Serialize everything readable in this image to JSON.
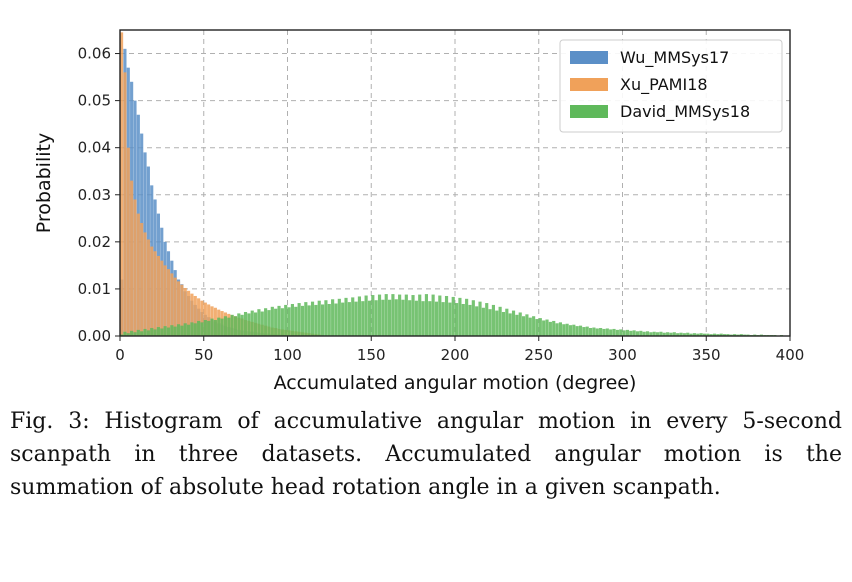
{
  "chart_data": {
    "type": "bar",
    "title": "",
    "xlabel": "Accumulated angular motion (degree)",
    "ylabel": "Probability",
    "xlim": [
      0,
      400
    ],
    "ylim": [
      0,
      0.065
    ],
    "xticks": [
      "0",
      "50",
      "100",
      "150",
      "200",
      "250",
      "300",
      "350",
      "400"
    ],
    "yticks": [
      "0.00",
      "0.01",
      "0.02",
      "0.03",
      "0.04",
      "0.05",
      "0.06"
    ],
    "grid": true,
    "legend_position": "top-right",
    "bin_width": 2,
    "series": [
      {
        "name": "Wu_MMSys17",
        "color": "#5b8fc7",
        "x": [
          0,
          2,
          4,
          6,
          8,
          10,
          12,
          14,
          16,
          18,
          20,
          22,
          24,
          26,
          28,
          30,
          32,
          34,
          36,
          38,
          40,
          42,
          44,
          46,
          48,
          50,
          52,
          54,
          56,
          58,
          60,
          62,
          64,
          66,
          68,
          70,
          72,
          74,
          76,
          78,
          80,
          82,
          84,
          86,
          88,
          90,
          92,
          94,
          96,
          98
        ],
        "values": [
          0.012,
          0.061,
          0.057,
          0.054,
          0.05,
          0.047,
          0.043,
          0.039,
          0.036,
          0.032,
          0.029,
          0.026,
          0.023,
          0.02,
          0.018,
          0.016,
          0.014,
          0.012,
          0.011,
          0.0095,
          0.0085,
          0.0075,
          0.0066,
          0.0058,
          0.0051,
          0.0045,
          0.004,
          0.0035,
          0.0031,
          0.0027,
          0.0024,
          0.0021,
          0.0019,
          0.0017,
          0.0015,
          0.0013,
          0.0012,
          0.0011,
          0.001,
          0.0009,
          0.0008,
          0.0007,
          0.0006,
          0.0005,
          0.0005,
          0.0004,
          0.0004,
          0.0003,
          0.0003,
          0.0002
        ]
      },
      {
        "name": "Xu_PAMI18",
        "color": "#f0a15a",
        "x": [
          0,
          2,
          4,
          6,
          8,
          10,
          12,
          14,
          16,
          18,
          20,
          22,
          24,
          26,
          28,
          30,
          32,
          34,
          36,
          38,
          40,
          42,
          44,
          46,
          48,
          50,
          52,
          54,
          56,
          58,
          60,
          62,
          64,
          66,
          68,
          70,
          72,
          74,
          76,
          78,
          80,
          82,
          84,
          86,
          88,
          90,
          92,
          94,
          96,
          98,
          100,
          102,
          104,
          106,
          108,
          110,
          112,
          114,
          116,
          118
        ],
        "values": [
          0.0645,
          0.056,
          0.04,
          0.033,
          0.029,
          0.026,
          0.024,
          0.022,
          0.0205,
          0.019,
          0.018,
          0.017,
          0.016,
          0.015,
          0.0142,
          0.0133,
          0.0124,
          0.0116,
          0.0109,
          0.0102,
          0.0096,
          0.009,
          0.0085,
          0.008,
          0.0075,
          0.0071,
          0.0067,
          0.0063,
          0.006,
          0.0056,
          0.0053,
          0.005,
          0.0047,
          0.0044,
          0.0042,
          0.0039,
          0.0037,
          0.0034,
          0.0032,
          0.003,
          0.0028,
          0.0026,
          0.0024,
          0.0022,
          0.002,
          0.0018,
          0.0017,
          0.0015,
          0.0014,
          0.0013,
          0.0012,
          0.0011,
          0.001,
          0.0009,
          0.0008,
          0.0007,
          0.0006,
          0.0005,
          0.0004,
          0.0003
        ]
      },
      {
        "name": "David_MMSys18",
        "color": "#5fb95b",
        "x": [
          0,
          2,
          4,
          6,
          8,
          10,
          12,
          14,
          16,
          18,
          20,
          22,
          24,
          26,
          28,
          30,
          32,
          34,
          36,
          38,
          40,
          42,
          44,
          46,
          48,
          50,
          52,
          54,
          56,
          58,
          60,
          62,
          64,
          66,
          68,
          70,
          72,
          74,
          76,
          78,
          80,
          82,
          84,
          86,
          88,
          90,
          92,
          94,
          96,
          98,
          100,
          102,
          104,
          106,
          108,
          110,
          112,
          114,
          116,
          118,
          120,
          122,
          124,
          126,
          128,
          130,
          132,
          134,
          136,
          138,
          140,
          142,
          144,
          146,
          148,
          150,
          152,
          154,
          156,
          158,
          160,
          162,
          164,
          166,
          168,
          170,
          172,
          174,
          176,
          178,
          180,
          182,
          184,
          186,
          188,
          190,
          192,
          194,
          196,
          198,
          200,
          202,
          204,
          206,
          208,
          210,
          212,
          214,
          216,
          218,
          220,
          222,
          224,
          226,
          228,
          230,
          232,
          234,
          236,
          238,
          240,
          242,
          244,
          246,
          248,
          250,
          252,
          254,
          256,
          258,
          260,
          262,
          264,
          266,
          268,
          270,
          272,
          274,
          276,
          278,
          280,
          282,
          284,
          286,
          288,
          290,
          292,
          294,
          296,
          298,
          300,
          302,
          304,
          306,
          308,
          310,
          312,
          314,
          316,
          318,
          320,
          322,
          324,
          326,
          328,
          330,
          332,
          334,
          336,
          338,
          340,
          342,
          344,
          346,
          348,
          350,
          352,
          354,
          356,
          358,
          360,
          362,
          364,
          366,
          368,
          370,
          372,
          374,
          376,
          378,
          380,
          382,
          384,
          386,
          388,
          390,
          392,
          394,
          396,
          398
        ],
        "values": [
          0.0003,
          0.0009,
          0.0006,
          0.0011,
          0.0008,
          0.0013,
          0.001,
          0.0015,
          0.0012,
          0.0017,
          0.0014,
          0.0019,
          0.0016,
          0.0021,
          0.0018,
          0.0023,
          0.002,
          0.0025,
          0.0022,
          0.0027,
          0.0024,
          0.0029,
          0.0027,
          0.0032,
          0.0029,
          0.0034,
          0.0032,
          0.0037,
          0.0034,
          0.0039,
          0.0037,
          0.0042,
          0.0039,
          0.0045,
          0.0042,
          0.0048,
          0.0045,
          0.0051,
          0.0048,
          0.0054,
          0.005,
          0.0057,
          0.0052,
          0.0059,
          0.0055,
          0.0062,
          0.0058,
          0.0064,
          0.0059,
          0.0066,
          0.0061,
          0.0068,
          0.0062,
          0.007,
          0.0064,
          0.0072,
          0.0065,
          0.0073,
          0.0066,
          0.0075,
          0.0067,
          0.0076,
          0.0068,
          0.0078,
          0.0069,
          0.0079,
          0.0071,
          0.0081,
          0.0072,
          0.0082,
          0.0073,
          0.0084,
          0.0074,
          0.0086,
          0.0075,
          0.0087,
          0.0076,
          0.0088,
          0.0077,
          0.0089,
          0.0077,
          0.0089,
          0.0078,
          0.0088,
          0.0077,
          0.0088,
          0.0076,
          0.0087,
          0.0075,
          0.0088,
          0.0074,
          0.0089,
          0.0074,
          0.0088,
          0.0073,
          0.0086,
          0.0072,
          0.0085,
          0.0071,
          0.0083,
          0.007,
          0.0081,
          0.0068,
          0.0079,
          0.0066,
          0.0076,
          0.0063,
          0.0073,
          0.006,
          0.007,
          0.0057,
          0.0066,
          0.0054,
          0.0062,
          0.0051,
          0.0058,
          0.0048,
          0.0054,
          0.0045,
          0.005,
          0.0042,
          0.0046,
          0.0039,
          0.0042,
          0.0036,
          0.0038,
          0.0033,
          0.0035,
          0.003,
          0.0032,
          0.0027,
          0.0029,
          0.0025,
          0.0026,
          0.0023,
          0.0024,
          0.0021,
          0.0022,
          0.0019,
          0.002,
          0.0017,
          0.0018,
          0.0016,
          0.0017,
          0.0015,
          0.0016,
          0.0014,
          0.0015,
          0.0013,
          0.0014,
          0.0012,
          0.0013,
          0.0011,
          0.0012,
          0.001,
          0.0011,
          0.0009,
          0.001,
          0.0008,
          0.0009,
          0.0008,
          0.0009,
          0.0007,
          0.0008,
          0.0007,
          0.0008,
          0.0006,
          0.0007,
          0.0006,
          0.0007,
          0.0005,
          0.0006,
          0.0005,
          0.0006,
          0.0005,
          0.0005,
          0.0004,
          0.0005,
          0.0004,
          0.0005,
          0.0004,
          0.0004,
          0.0003,
          0.0004,
          0.0003,
          0.0004,
          0.0003,
          0.0003,
          0.0002,
          0.0003,
          0.0002,
          0.0003,
          0.0002,
          0.0002,
          0.0002,
          0.0002,
          0.0001,
          0.0002,
          0.0001,
          0.0001
        ]
      }
    ]
  },
  "caption": "Fig. 3: Histogram of accumulative angular motion in every 5-second scanpath in three datasets. Accumulated angular motion is the summation of absolute head rotation angle in a given scanpath."
}
